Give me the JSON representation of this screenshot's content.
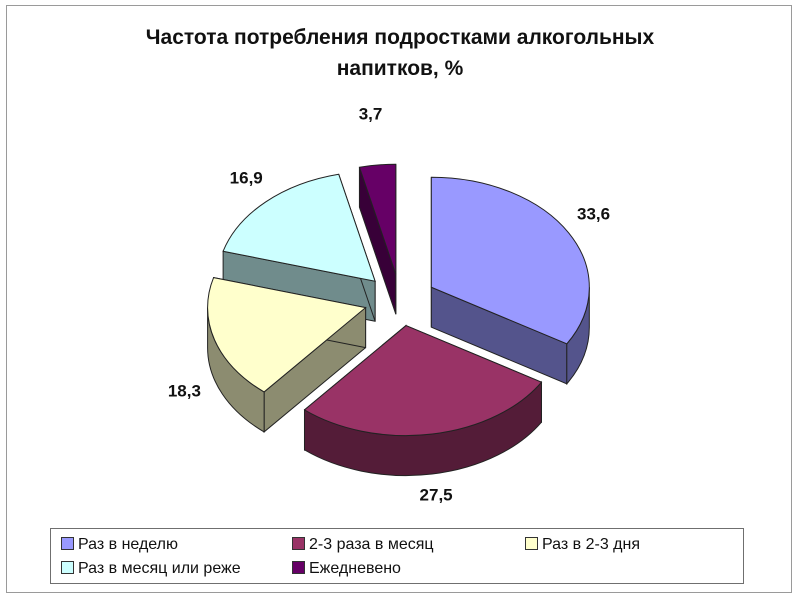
{
  "title_line1": "Частота потребления подростками алкогольных",
  "title_line2": "напитков, %",
  "chart_data": {
    "type": "pie",
    "title": "Частота потребления подростками алкогольных напитков, %",
    "categories": [
      "Раз в неделю",
      "2-3 раза в месяц",
      "Раз в 2-3 дня",
      "Раз в месяц или реже",
      "Ежедневено"
    ],
    "values": [
      33.6,
      27.5,
      18.3,
      16.9,
      3.7
    ],
    "labels": [
      "33,6",
      "27,5",
      "18,3",
      "16,9",
      "3,7"
    ],
    "colors": [
      "#9999ff",
      "#993366",
      "#ffffcc",
      "#ccffff",
      "#660066"
    ],
    "style": "exploded 3D pie",
    "legend_position": "bottom"
  },
  "legend": [
    {
      "label": "Раз в неделю",
      "color": "#9999ff"
    },
    {
      "label": "2-3 раза в месяц",
      "color": "#993366"
    },
    {
      "label": "Раз в 2-3 дня",
      "color": "#ffffcc"
    },
    {
      "label": "Раз в месяц или реже",
      "color": "#ccffff"
    },
    {
      "label": "Ежедневено",
      "color": "#660066"
    }
  ]
}
